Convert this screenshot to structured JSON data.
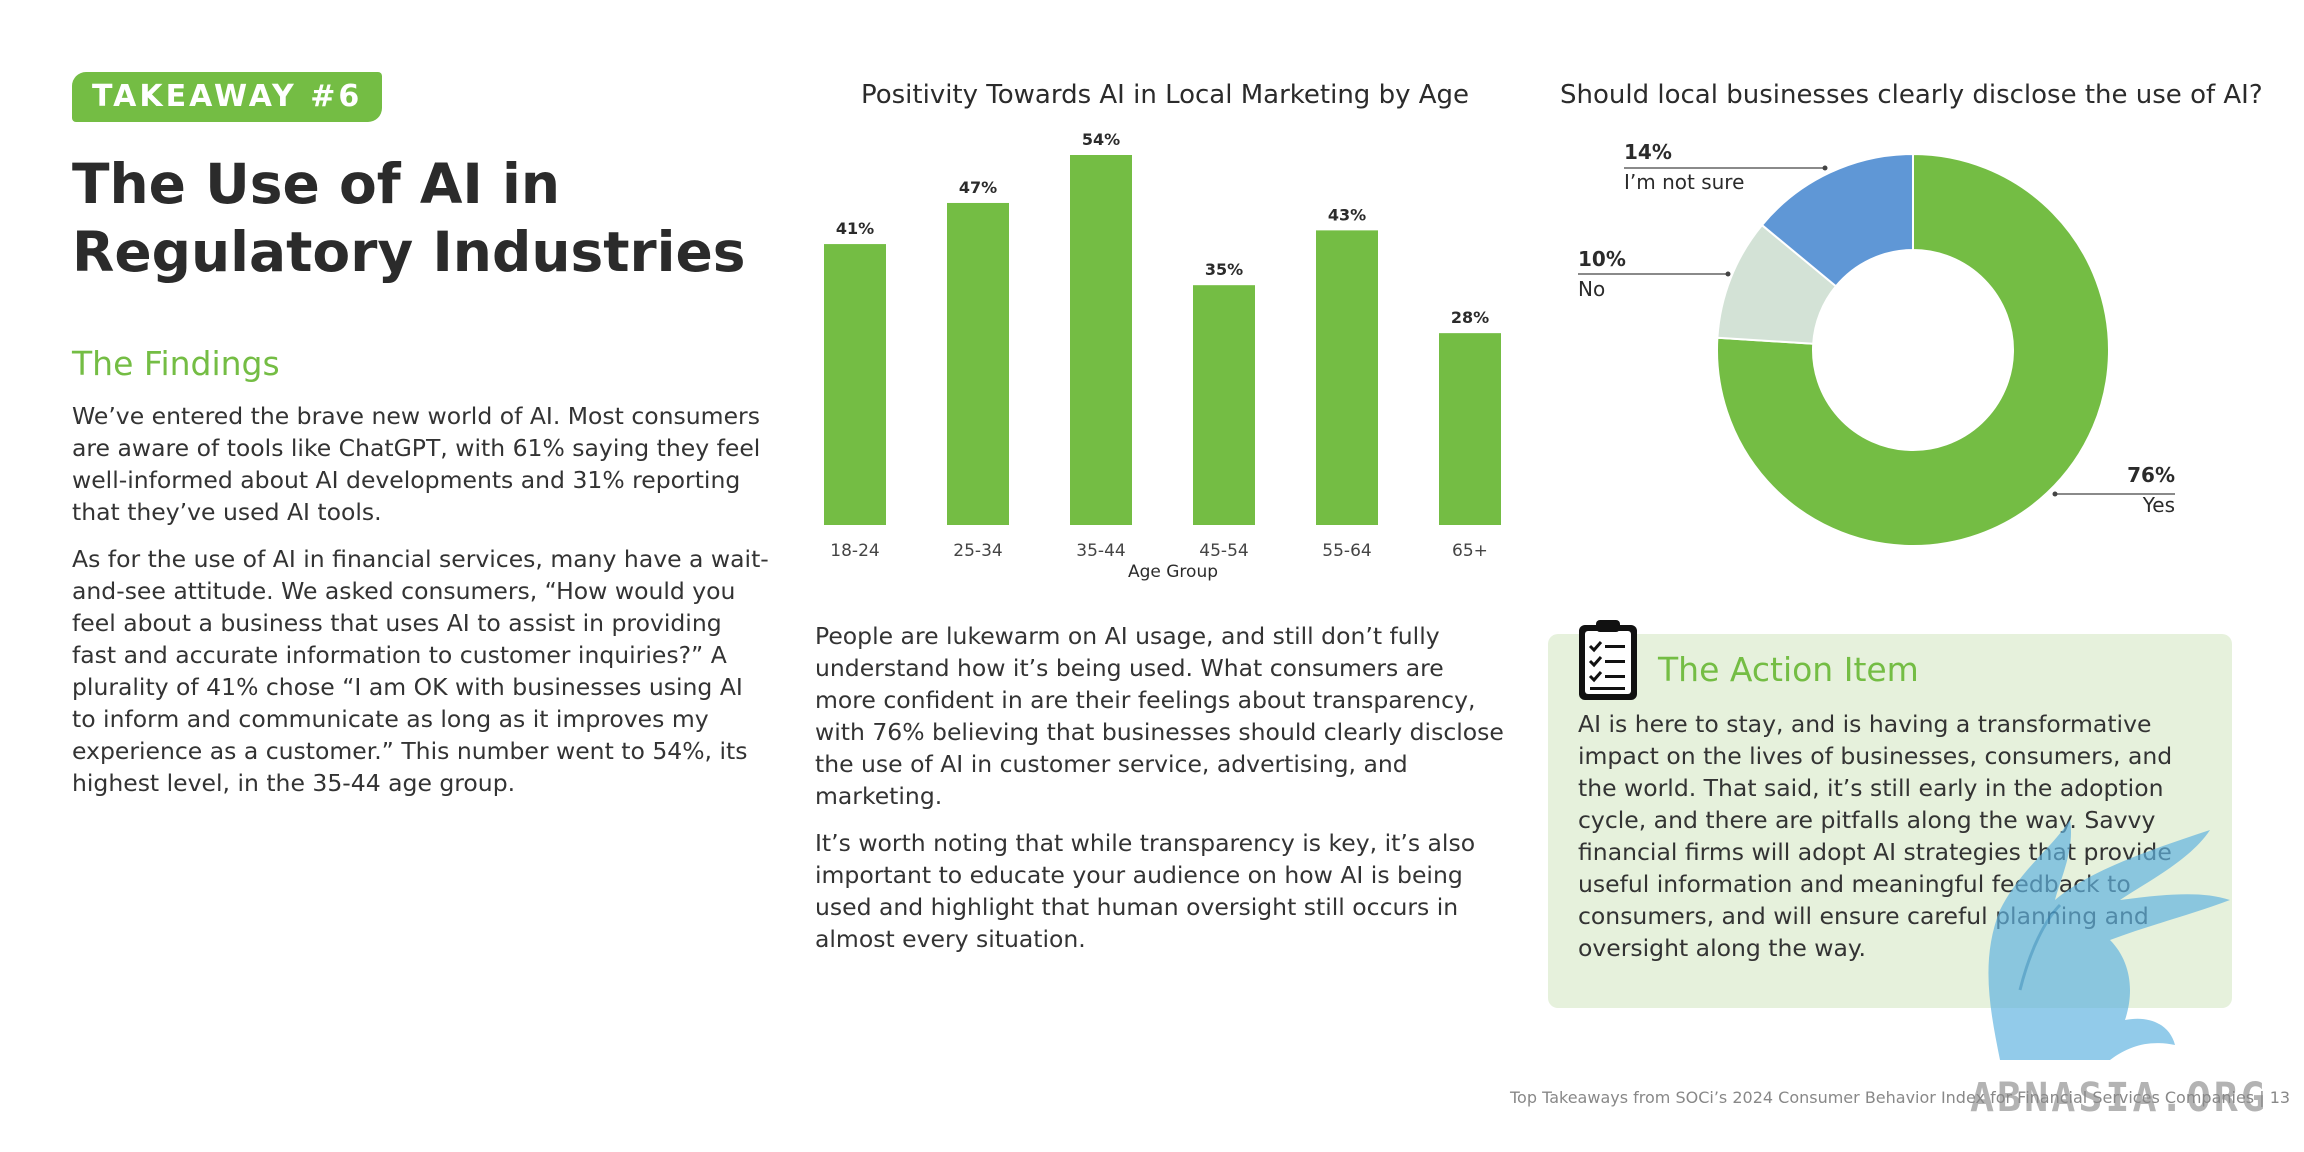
{
  "badge": "TAKEAWAY #6",
  "title": {
    "line1": "The Use of AI in",
    "line2": "Regulatory Industries"
  },
  "findings": {
    "heading": "The Findings",
    "p1": "We’ve entered the brave new world of AI. Most consumers are aware of tools like ChatGPT, with 61% saying they feel well-informed about AI developments and 31% reporting that they’ve used AI tools.",
    "p2": "As for the use of AI in financial services, many have a wait-and-see attitude. We asked consumers, “How would you feel about a business that uses AI to assist in providing fast and accurate information to customer inquiries?” A plurality of 41% chose “I am OK with businesses using AI to inform and communicate as long as it improves my experience as a customer.” This number went to 54%, its highest level, in the 35-44 age group."
  },
  "middle": {
    "p1": "People are lukewarm on AI usage, and still don’t fully understand how it’s being used. What consumers are more confident in are their feelings about transparency, with 76% believing that businesses should clearly disclose the use of AI in customer service, advertising, and marketing.",
    "p2": "It’s worth noting that while transparency is key, it’s also important to educate your audience on how AI is being used and highlight that human oversight still occurs in almost every situation."
  },
  "action": {
    "heading": "The Action Item",
    "text": "AI is here to stay, and is having a transformative impact on the lives of businesses, consumers, and the world. That said, it’s still early in the adoption cycle, and there are pitfalls along the way. Savvy financial firms will adopt AI strategies that provide useful information and meaningful feedback to consumers, and will ensure careful planning and oversight along the way."
  },
  "watermark_text": "ABNASIA.ORG",
  "footer": "Top Takeaways from SOCi’s 2024 Consumer Behavior Index for Financial Services Companies | 13",
  "colors": {
    "green": "#74bd44",
    "blue": "#5f97d6",
    "pale": "#d3e2d6",
    "panel": "#e6f1dc"
  },
  "chart_data": [
    {
      "type": "bar",
      "title": "Positivity Towards AI in Local Marketing by Age",
      "xlabel": "Age Group",
      "ylabel": "",
      "categories": [
        "18-24",
        "25-34",
        "35-44",
        "45-54",
        "55-64",
        "65+"
      ],
      "values": [
        41,
        47,
        54,
        35,
        43,
        28
      ],
      "value_labels": [
        "41%",
        "47%",
        "54%",
        "35%",
        "43%",
        "28%"
      ],
      "ylim": [
        0,
        54
      ],
      "grid": false,
      "color": "#74bd44"
    },
    {
      "type": "pie",
      "donut": true,
      "title": "Should local businesses clearly disclose the use of AI?",
      "slices": [
        {
          "label": "Yes",
          "value": 76,
          "pct": "76%",
          "color": "#74bd44"
        },
        {
          "label": "No",
          "value": 10,
          "pct": "10%",
          "color": "#d3e2d6"
        },
        {
          "label": "I’m not sure",
          "value": 14,
          "pct": "14%",
          "color": "#5f97d6"
        }
      ]
    }
  ]
}
